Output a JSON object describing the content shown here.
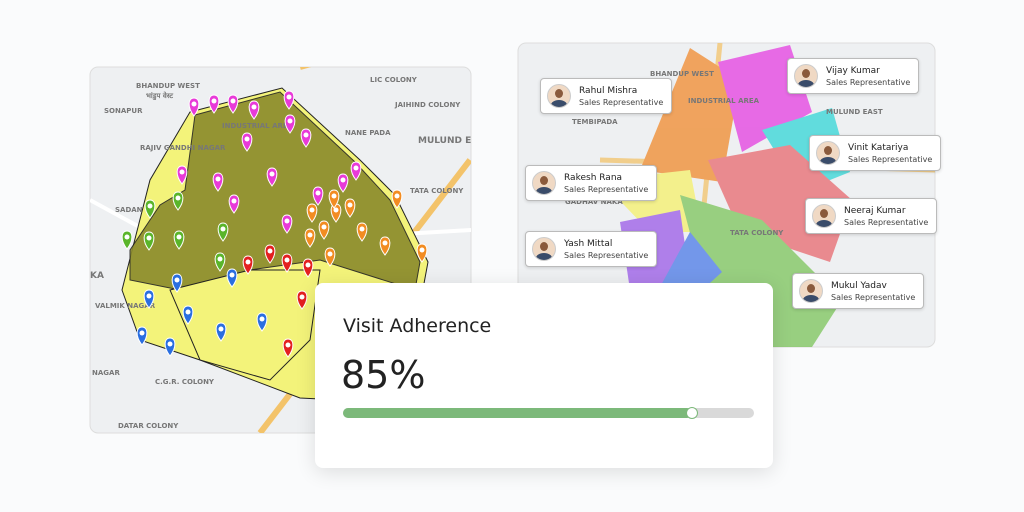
{
  "left_map": {
    "labels": [
      "BHANDUP WEST",
      "भांडुप वेस्ट",
      "SONAPUR",
      "INDUSTRIAL AREA",
      "NANE PADA",
      "MULUND E",
      "TATA COLONY",
      "JAIHIND COLONY",
      "LIC COLONY",
      "SADAN W",
      "RAJIV GANDHI NAGAR",
      "VALMIK NAGAR",
      "C.G.R. COLONY",
      "DATAR COLONY",
      "KA",
      "NAGAR"
    ]
  },
  "right_map": {
    "labels": [
      "BHANDUP WEST",
      "INDUSTRIAL AREA",
      "MULUND EAST",
      "GADHAV NAKA",
      "TATA COLONY",
      "TEMBIPADA"
    ]
  },
  "representatives": [
    {
      "name": "Rahul Mishra",
      "role": "Sales Representative"
    },
    {
      "name": "Vijay Kumar",
      "role": "Sales Representative"
    },
    {
      "name": "Vinit Katariya",
      "role": "Sales Representative"
    },
    {
      "name": "Rakesh Rana",
      "role": "Sales Representative"
    },
    {
      "name": "Neeraj Kumar",
      "role": "Sales Representative"
    },
    {
      "name": "Yash Mittal",
      "role": "Sales Representative"
    },
    {
      "name": "Mukul Yadav",
      "role": "Sales Representative"
    }
  ],
  "card": {
    "title": "Visit Adherence",
    "value": 85,
    "value_label": "85%"
  }
}
